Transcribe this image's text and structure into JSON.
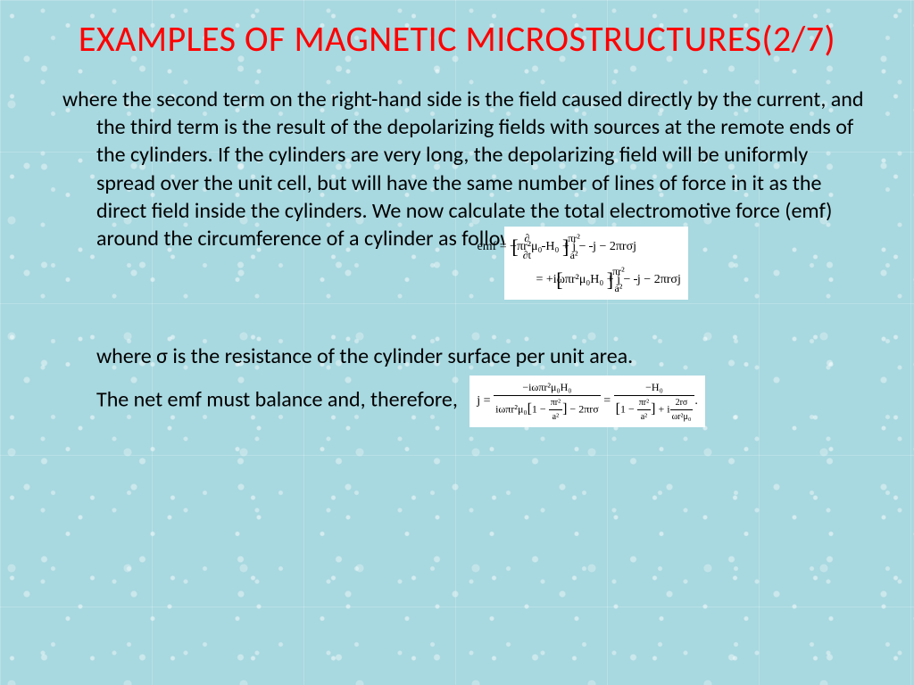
{
  "slide": {
    "title": "EXAMPLES OF MAGNETIC MICROSTRUCTURES(2/7)",
    "title_color": "#ff0000",
    "title_fontsize": 40,
    "body_color": "#000000",
    "body_fontsize": 24,
    "background_color": "#a8d8e0",
    "para1": "where the second term on the right-hand side is the field caused directly by the current, and the third term is the result of the depolarizing fields with sources at the remote ends of the cylinders. If the cylinders are very long, the depolarizing field will be uniformly spread over the unit cell, but will have the same number of lines of force in it as the direct field inside the cylinders. We now calculate the total electromotive force (emf) around the circumference of a cylinder as follows:",
    "equation1": {
      "line1_prefix": "emf = −πr²μ₀",
      "line1_deriv_num": "∂",
      "line1_deriv_den": "∂t",
      "line1_bracket": "H₀ + j −",
      "line1_frac_num": "πr²",
      "line1_frac_den": "a²",
      "line1_suffix": "j",
      "line1_tail": " − 2πrσj",
      "line2_prefix": "= +iωπr²μ₀",
      "line2_bracket": "H₀ + j −",
      "line2_frac_num": "πr²",
      "line2_frac_den": "a²",
      "line2_suffix": "j",
      "line2_tail": " − 2πrσj",
      "background": "#ffffff",
      "font_family": "Times New Roman",
      "fontsize": 14
    },
    "para2": "where σ is the resistance of the cylinder surface per unit area.",
    "para3": "The net emf must balance and, therefore,",
    "equation2": {
      "lhs": "j =",
      "frac1_num": "−iωπr²μ₀H₀",
      "frac1_den_prefix": "iωπr²μ₀",
      "frac1_den_bracket_prefix": "1 −",
      "frac1_den_frac_num": "πr²",
      "frac1_den_frac_den": "a²",
      "frac1_den_suffix": " − 2πrσ",
      "mid": " = ",
      "frac2_num": "−H₀",
      "frac2_den_bracket_prefix": "1 −",
      "frac2_den_frac_num": "πr²",
      "frac2_den_frac_den": "a²",
      "frac2_den_mid": " + i",
      "frac2_den_frac2_num": "2rσ",
      "frac2_den_frac2_den": "ωr²μ₀",
      "tail": ".",
      "background": "#ffffff",
      "font_family": "Times New Roman",
      "fontsize": 14
    }
  }
}
